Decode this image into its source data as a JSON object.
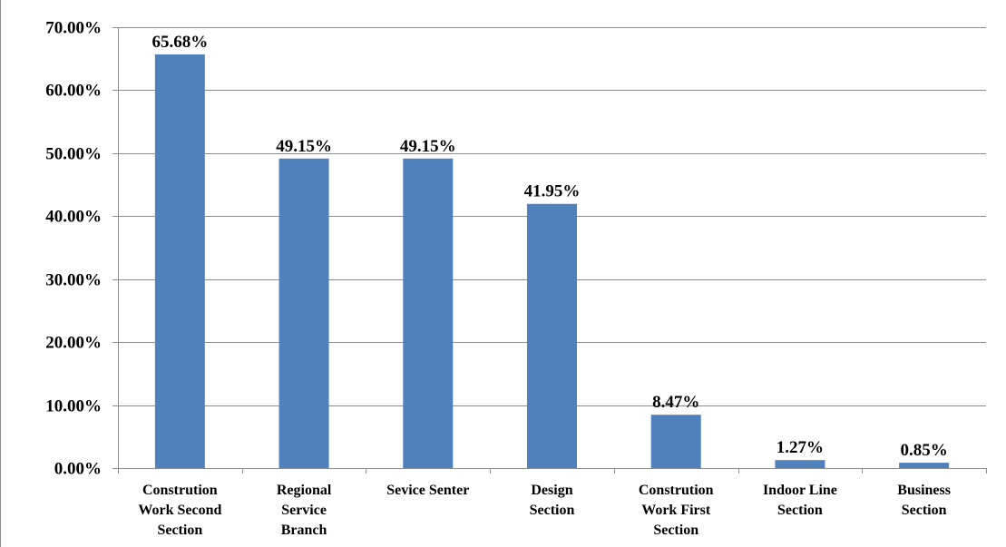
{
  "chart_data": {
    "type": "bar",
    "title": "",
    "xlabel": "",
    "ylabel": "",
    "categories": [
      [
        "Constrution",
        "Work Second",
        "Section"
      ],
      [
        "Regional",
        "Service",
        "Branch"
      ],
      [
        "Sevice Senter"
      ],
      [
        "Design",
        "Section"
      ],
      [
        "Constrution",
        "Work First",
        "Section"
      ],
      [
        "Indoor Line",
        "Section"
      ],
      [
        "Business",
        "Section"
      ]
    ],
    "values": [
      65.68,
      49.15,
      49.15,
      41.95,
      8.47,
      1.27,
      0.85
    ],
    "data_labels": [
      "65.68%",
      "49.15%",
      "49.15%",
      "41.95%",
      "8.47%",
      "1.27%",
      "0.85%"
    ],
    "ylim": [
      0,
      70
    ],
    "yticks": [
      0,
      10,
      20,
      30,
      40,
      50,
      60,
      70
    ],
    "ytick_labels": [
      "0.00%",
      "10.00%",
      "20.00%",
      "30.00%",
      "40.00%",
      "50.00%",
      "60.00%",
      "70.00%"
    ],
    "grid": true,
    "legend": "none",
    "colors": {
      "bar": "#4f81bd",
      "grid": "#8c8c8c",
      "axis": "#8c8c8c"
    }
  }
}
